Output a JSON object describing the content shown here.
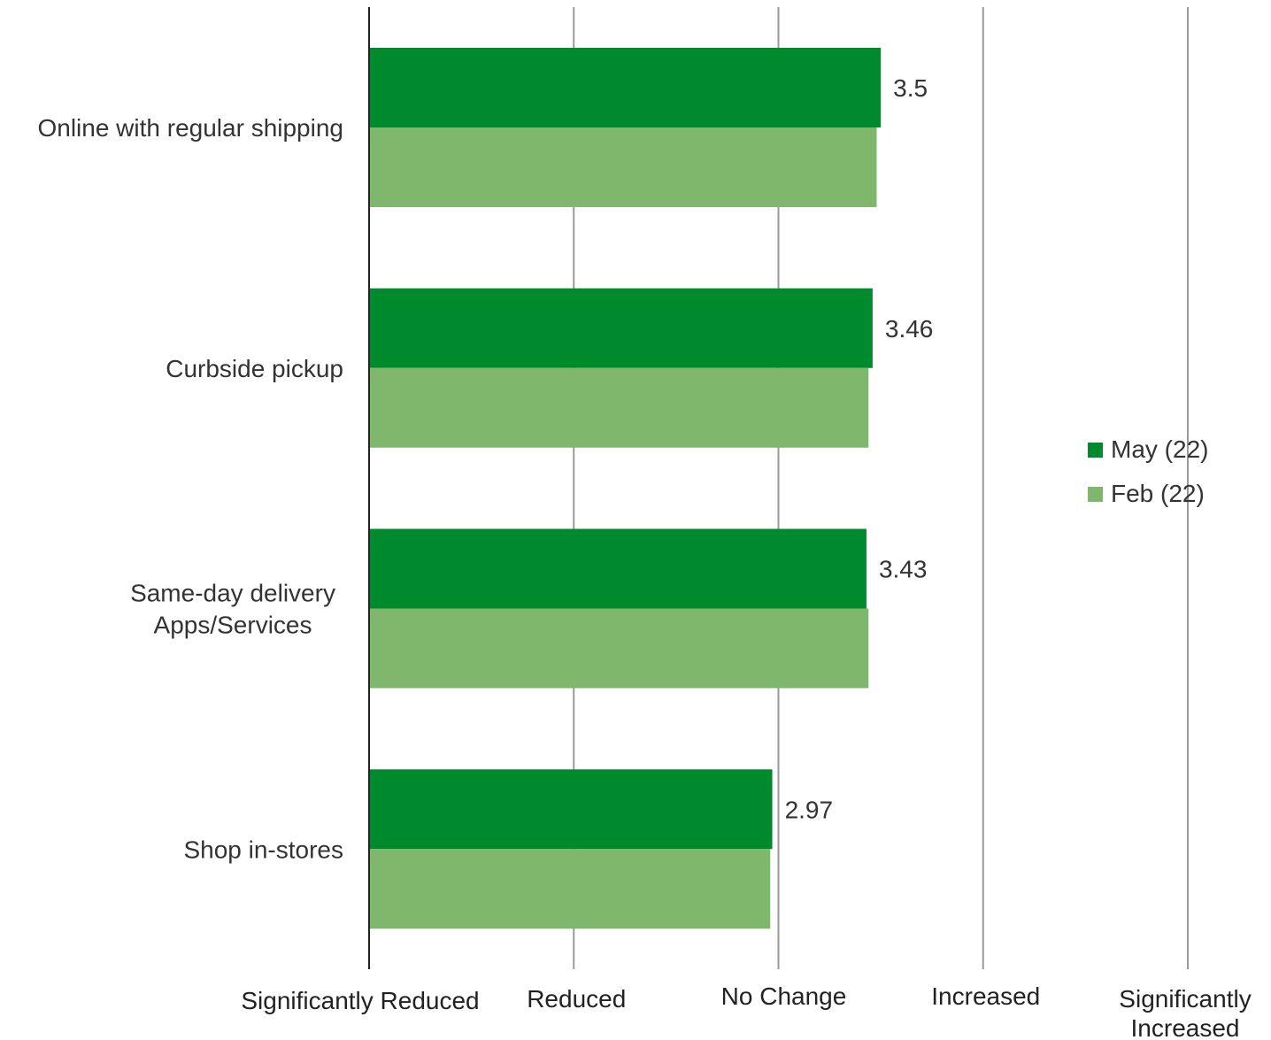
{
  "chart_data": {
    "type": "bar",
    "orientation": "horizontal",
    "categories": [
      [
        "Online with regular shipping"
      ],
      [
        "Curbside pickup"
      ],
      [
        "Same-day delivery",
        "Apps/Services"
      ],
      [
        "Shop in-stores"
      ]
    ],
    "series": [
      {
        "name": "May (22)",
        "color": "#008a2e",
        "values": [
          3.5,
          3.46,
          3.43,
          2.97
        ],
        "labels": [
          "3.5",
          "3.46",
          "3.43",
          "2.97"
        ]
      },
      {
        "name": "Feb (22)",
        "color": "#7fb86c",
        "values": [
          3.48,
          3.44,
          3.44,
          2.96
        ]
      }
    ],
    "xlim": [
      1,
      5
    ],
    "x_ticks": [
      {
        "value": 1,
        "lines": [
          "Significantly Reduced"
        ]
      },
      {
        "value": 2,
        "lines": [
          "Reduced"
        ]
      },
      {
        "value": 3,
        "lines": [
          "No Change"
        ]
      },
      {
        "value": 4,
        "lines": [
          "Increased"
        ]
      },
      {
        "value": 5,
        "lines": [
          "Significantly",
          "Increased"
        ]
      }
    ],
    "grid": true,
    "legend_position": "right"
  }
}
